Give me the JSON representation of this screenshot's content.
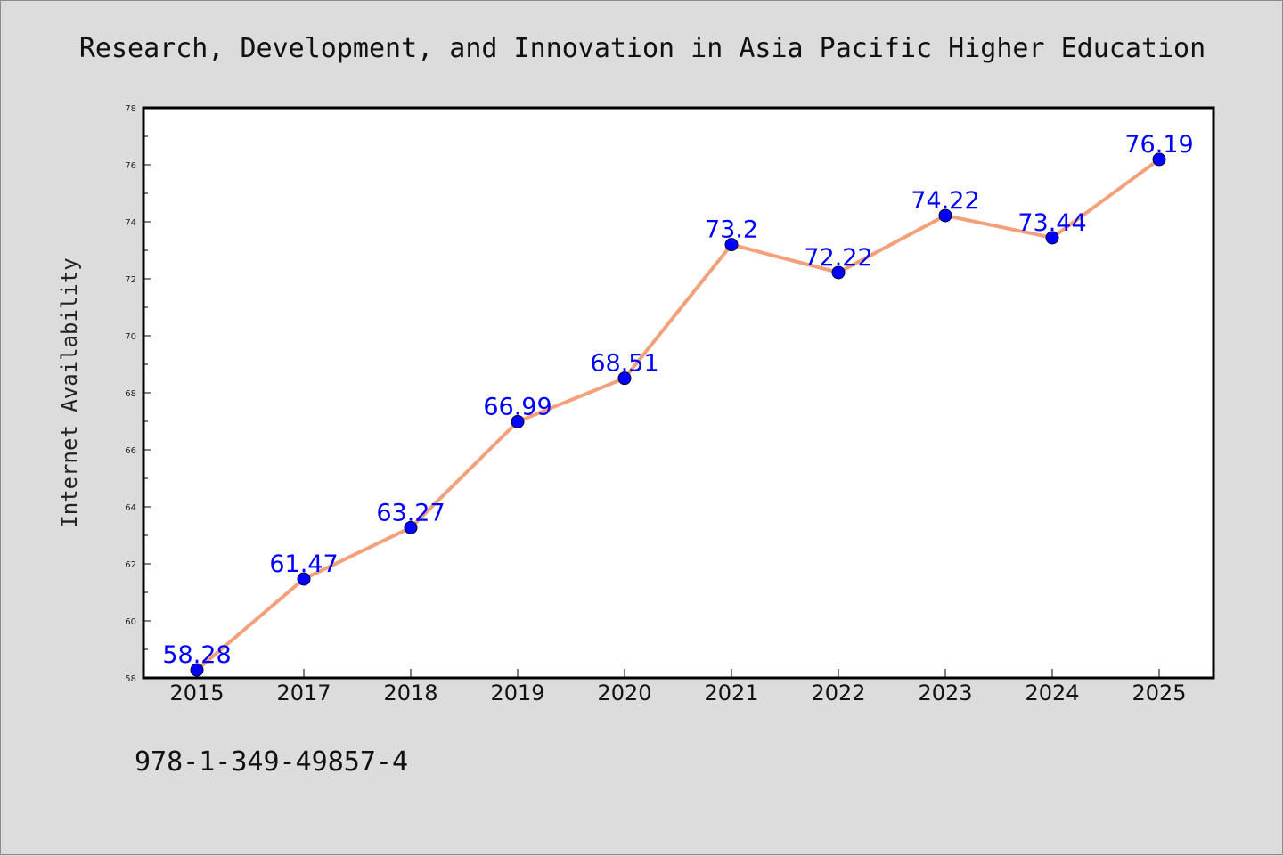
{
  "footnote": "978-1-349-49857-4",
  "colors": {
    "background": "#dcdcdc",
    "plot_background": "#ffffff",
    "line": "#f4a07a",
    "marker": "#0000ff",
    "data_label": "#0000ff"
  },
  "chart_data": {
    "type": "line",
    "title": "Research, Development, and Innovation in Asia Pacific Higher Education",
    "xlabel": "",
    "ylabel": "Internet Availability",
    "categories": [
      "2015",
      "2017",
      "2018",
      "2019",
      "2020",
      "2021",
      "2022",
      "2023",
      "2024",
      "2025"
    ],
    "series": [
      {
        "values": [
          58.28,
          61.47,
          63.27,
          66.99,
          68.51,
          73.2,
          72.22,
          74.22,
          73.44,
          76.19
        ],
        "labels": [
          "58.28",
          "61.47",
          "63.27",
          "66.99",
          "68.51",
          "73.2",
          "72.22",
          "74.22",
          "73.44",
          "76.19"
        ]
      }
    ],
    "ylim": [
      58,
      78
    ],
    "yticks": [
      58,
      60,
      62,
      64,
      66,
      68,
      70,
      72,
      74,
      76,
      78
    ],
    "grid": false,
    "legend": "none"
  }
}
